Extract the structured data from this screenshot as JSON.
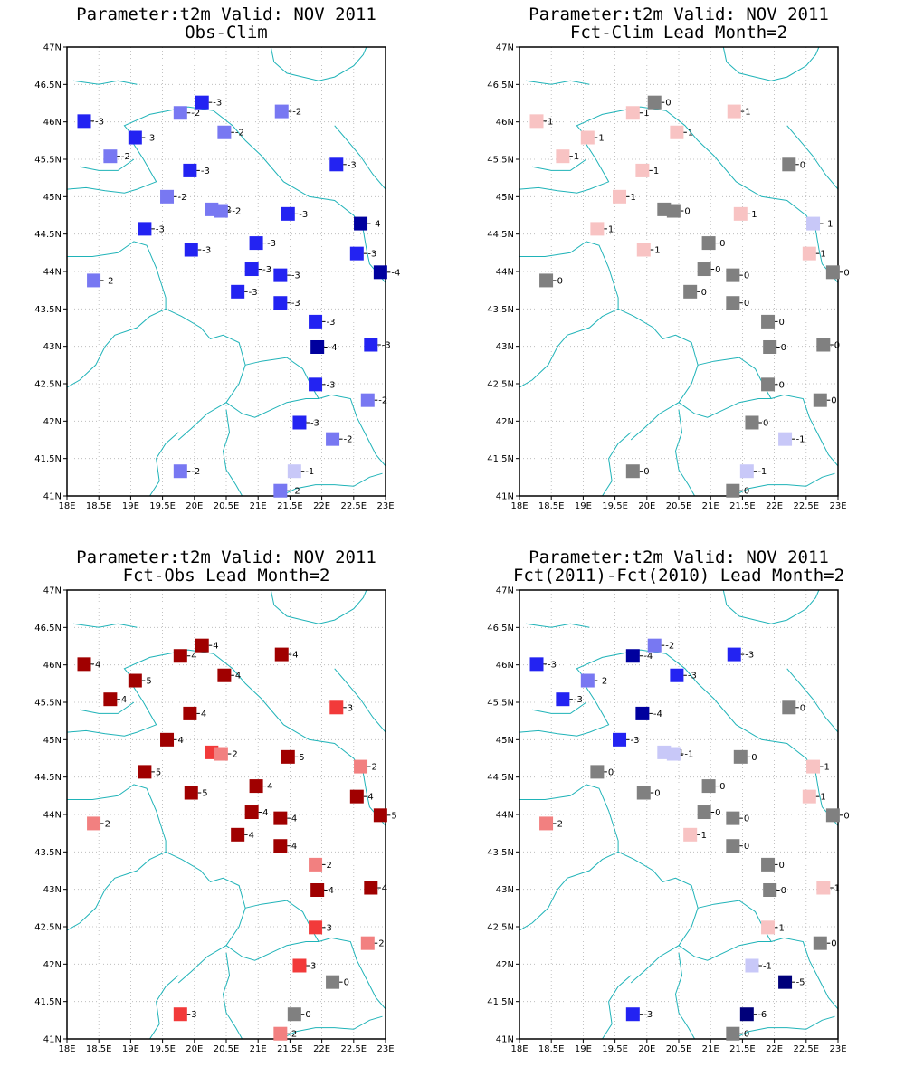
{
  "lat_ticks": [
    "47N",
    "46.5N",
    "46N",
    "45.5N",
    "45N",
    "44.5N",
    "44N",
    "43.5N",
    "43N",
    "42.5N",
    "42N",
    "41.5N",
    "41N"
  ],
  "lon_ticks": [
    "18E",
    "18.5E",
    "19E",
    "19.5E",
    "20E",
    "20.5E",
    "21E",
    "21.5E",
    "22E",
    "22.5E",
    "23E"
  ],
  "legend_colors": {
    "-6": "#00007a",
    "-5": "#00007a",
    "-4": "#00009e",
    "-3": "#2323f2",
    "-2": "#7878f2",
    "-1": "#c8c8f8",
    "0": "#808080",
    "1": "#f8c3c3",
    "2": "#f28080",
    "3": "#f23a3a",
    "4": "#a00000",
    "5": "#a00000"
  },
  "stations": [
    {
      "lon": 18.27,
      "lat": 46.01
    },
    {
      "lon": 18.68,
      "lat": 45.54
    },
    {
      "lon": 19.07,
      "lat": 45.79
    },
    {
      "lon": 19.78,
      "lat": 46.12
    },
    {
      "lon": 20.12,
      "lat": 46.26
    },
    {
      "lon": 20.47,
      "lat": 45.86
    },
    {
      "lon": 19.93,
      "lat": 45.35
    },
    {
      "lon": 19.57,
      "lat": 45.0
    },
    {
      "lon": 20.27,
      "lat": 44.83
    },
    {
      "lon": 20.42,
      "lat": 44.81
    },
    {
      "lon": 21.37,
      "lat": 46.14
    },
    {
      "lon": 22.23,
      "lat": 45.43
    },
    {
      "lon": 19.22,
      "lat": 44.57
    },
    {
      "lon": 19.95,
      "lat": 44.29
    },
    {
      "lon": 18.42,
      "lat": 43.88
    },
    {
      "lon": 21.47,
      "lat": 44.77
    },
    {
      "lon": 20.97,
      "lat": 44.38
    },
    {
      "lon": 20.9,
      "lat": 44.03
    },
    {
      "lon": 20.68,
      "lat": 43.73
    },
    {
      "lon": 21.35,
      "lat": 43.95
    },
    {
      "lon": 21.35,
      "lat": 43.58
    },
    {
      "lon": 22.61,
      "lat": 44.64
    },
    {
      "lon": 22.55,
      "lat": 44.24
    },
    {
      "lon": 22.92,
      "lat": 43.99
    },
    {
      "lon": 21.9,
      "lat": 43.33
    },
    {
      "lon": 21.93,
      "lat": 42.99
    },
    {
      "lon": 22.77,
      "lat": 43.02
    },
    {
      "lon": 21.9,
      "lat": 42.49
    },
    {
      "lon": 22.72,
      "lat": 42.28
    },
    {
      "lon": 21.65,
      "lat": 41.98
    },
    {
      "lon": 22.17,
      "lat": 41.76
    },
    {
      "lon": 19.78,
      "lat": 41.33
    },
    {
      "lon": 21.57,
      "lat": 41.33
    },
    {
      "lon": 21.35,
      "lat": 41.07
    }
  ],
  "panels": [
    {
      "title1": "Parameter:t2m Valid: NOV 2011",
      "title2": "Obs-Clim",
      "values": [
        "-3",
        "-2",
        "-3",
        "-2",
        "-3",
        "-2",
        "-3",
        "-2",
        "-2",
        "-2",
        "-2",
        "-3",
        "-3",
        "-3",
        "-2",
        "-3",
        "-3",
        "-3",
        "-3",
        "-3",
        "-3",
        "-4",
        "-3",
        "-4",
        "-3",
        "-4",
        "-3",
        "-3",
        "-2",
        "-3",
        "-2",
        "-2",
        "-1",
        "-2"
      ]
    },
    {
      "title1": "Parameter:t2m Valid: NOV 2011",
      "title2": "Fct-Clim Lead Month=2",
      "values": [
        "1",
        "1",
        "1",
        "1",
        "0",
        "1",
        "1",
        "1",
        "0",
        "0",
        "1",
        "0",
        "1",
        "1",
        "0",
        "1",
        "0",
        "0",
        "0",
        "0",
        "0",
        "-1",
        "1",
        "0",
        "0",
        "0",
        "0",
        "0",
        "0",
        "0",
        "-1",
        "0",
        "-1",
        "0"
      ]
    },
    {
      "title1": "Parameter:t2m Valid: NOV 2011",
      "title2": "Fct-Obs Lead Month=2",
      "values": [
        "4",
        "4",
        "5",
        "4",
        "4",
        "4",
        "4",
        "4",
        "3",
        "2",
        "4",
        "3",
        "5",
        "5",
        "2",
        "5",
        "4",
        "4",
        "4",
        "4",
        "4",
        "2",
        "4",
        "5",
        "2",
        "4",
        "4",
        "3",
        "2",
        "3",
        "0",
        "3",
        "0",
        "2"
      ]
    },
    {
      "title1": "Parameter:t2m Valid: NOV 2011",
      "title2": "Fct(2011)-Fct(2010) Lead Month=2",
      "values": [
        "-3",
        "-3",
        "-2",
        "-4",
        "-2",
        "-3",
        "-4",
        "-3",
        "-1",
        "-1",
        "-3",
        "0",
        "0",
        "0",
        "2",
        "0",
        "0",
        "0",
        "1",
        "0",
        "0",
        "1",
        "1",
        "0",
        "0",
        "0",
        "1",
        "1",
        "0",
        "-1",
        "-5",
        "-3",
        "-6",
        "0"
      ]
    }
  ]
}
